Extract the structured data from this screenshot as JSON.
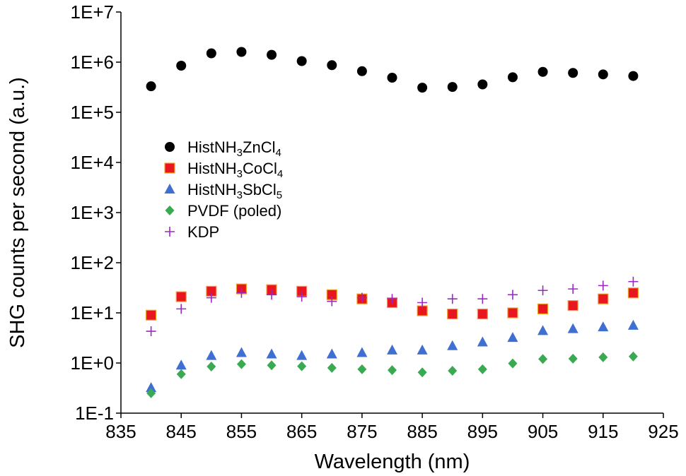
{
  "chart_data": {
    "type": "scatter",
    "xlabel": "Wavelength (nm)",
    "ylabel": "SHG counts per second (a.u.)",
    "x_scale": "linear",
    "y_scale": "log",
    "xlim": [
      835,
      925
    ],
    "ylim": [
      0.1,
      10000000
    ],
    "x_ticks": [
      "835",
      "845",
      "855",
      "865",
      "875",
      "885",
      "895",
      "905",
      "915",
      "925"
    ],
    "y_ticks": [
      "1E-1",
      "1E+0",
      "1E+1",
      "1E+2",
      "1E+3",
      "1E+4",
      "1E+5",
      "1E+6",
      "1E+7"
    ],
    "grid": false,
    "legend_position": "center-left",
    "x": [
      840,
      845,
      850,
      855,
      860,
      865,
      870,
      875,
      880,
      885,
      890,
      895,
      900,
      905,
      910,
      915,
      920
    ],
    "series": [
      {
        "name": "HistNH3ZnCl4",
        "name_parts": [
          [
            "HistNH",
            ""
          ],
          [
            "3",
            "sub"
          ],
          [
            "ZnCl",
            ""
          ],
          [
            "4",
            "sub"
          ]
        ],
        "marker": "circle",
        "color": "#000000",
        "values": [
          330000,
          850000,
          1500000,
          1600000,
          1400000,
          1050000,
          870000,
          660000,
          490000,
          310000,
          320000,
          360000,
          500000,
          640000,
          610000,
          570000,
          530000
        ]
      },
      {
        "name": "HistNH3CoCl4",
        "name_parts": [
          [
            "HistNH",
            ""
          ],
          [
            "3",
            "sub"
          ],
          [
            "CoCl",
            ""
          ],
          [
            "4",
            "sub"
          ]
        ],
        "marker": "square",
        "color": "#e8171f",
        "values": [
          9,
          21,
          27,
          30,
          29,
          27,
          23,
          19,
          16,
          11,
          9.5,
          9.5,
          10,
          12,
          14,
          19,
          25
        ]
      },
      {
        "name": "HistNH3SbCl5",
        "name_parts": [
          [
            "HistNH",
            ""
          ],
          [
            "3",
            "sub"
          ],
          [
            "SbCl",
            ""
          ],
          [
            "5",
            "sub"
          ]
        ],
        "marker": "triangle",
        "color": "#3e6fd1",
        "values": [
          0.32,
          0.9,
          1.4,
          1.6,
          1.5,
          1.4,
          1.5,
          1.6,
          1.8,
          1.8,
          2.2,
          2.6,
          3.2,
          4.4,
          4.8,
          5.2,
          5.6
        ]
      },
      {
        "name": "PVDF (poled)",
        "name_parts": [
          [
            "PVDF (poled)",
            ""
          ]
        ],
        "marker": "diamond",
        "color": "#3aaa52",
        "values": [
          0.25,
          0.6,
          0.85,
          0.95,
          0.9,
          0.86,
          0.8,
          0.75,
          0.72,
          0.65,
          0.7,
          0.75,
          0.98,
          1.2,
          1.22,
          1.3,
          1.35
        ]
      },
      {
        "name": "KDP",
        "name_parts": [
          [
            "KDP",
            ""
          ]
        ],
        "marker": "plus",
        "color": "#9b27c9",
        "values": [
          4.3,
          12,
          20,
          25,
          23,
          21,
          17,
          20,
          19,
          16,
          19,
          19,
          23,
          28,
          30,
          35,
          42
        ]
      }
    ]
  }
}
